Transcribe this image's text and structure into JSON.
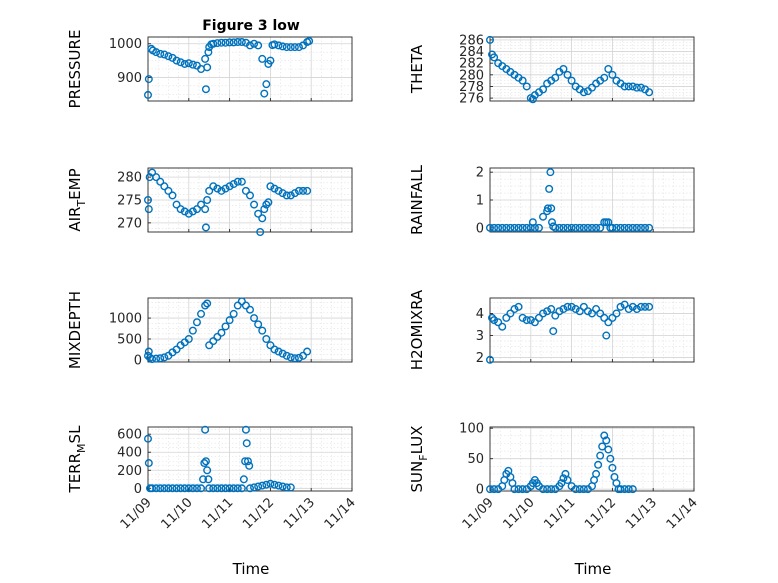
{
  "figure": {
    "title": "Figure 3 low",
    "xlabel": "Time",
    "xticks": [
      "11/09",
      "11/10",
      "11/11",
      "11/12",
      "11/13",
      "11/14"
    ],
    "marker_color": "#0072bd"
  },
  "chart_data": [
    {
      "id": "pressure",
      "type": "scatter",
      "ylabel": "PRESSURE",
      "ylabel_sub": "",
      "title": "Figure 3 low",
      "xlim": [
        0,
        5
      ],
      "ylim": [
        830,
        1020
      ],
      "yticks": [
        900,
        1000
      ],
      "x": [
        0,
        0.02,
        0.08,
        0.12,
        0.2,
        0.3,
        0.4,
        0.5,
        0.6,
        0.7,
        0.8,
        0.9,
        1.0,
        1.1,
        1.2,
        1.3,
        1.4,
        1.42,
        1.45,
        1.48,
        1.5,
        1.55,
        1.6,
        1.7,
        1.8,
        1.9,
        2.0,
        2.1,
        2.2,
        2.3,
        2.4,
        2.5,
        2.6,
        2.7,
        2.8,
        2.85,
        2.9,
        2.95,
        3.0,
        3.05,
        3.1,
        3.2,
        3.3,
        3.4,
        3.5,
        3.6,
        3.7,
        3.8,
        3.9,
        3.95
      ],
      "y": [
        848,
        895,
        985,
        980,
        975,
        970,
        968,
        963,
        958,
        950,
        945,
        940,
        942,
        938,
        935,
        925,
        955,
        865,
        930,
        975,
        990,
        998,
        1000,
        1002,
        1003,
        1003,
        1004,
        1004,
        1005,
        1005,
        1003,
        995,
        1000,
        995,
        955,
        852,
        880,
        940,
        950,
        996,
        998,
        995,
        992,
        990,
        990,
        990,
        990,
        995,
        1005,
        1008
      ]
    },
    {
      "id": "theta",
      "type": "scatter",
      "ylabel": "THETA",
      "ylabel_sub": "",
      "xlim": [
        0,
        5
      ],
      "ylim": [
        275.5,
        286.5
      ],
      "yticks": [
        276,
        278,
        280,
        282,
        284,
        286
      ],
      "x": [
        0,
        0.05,
        0.1,
        0.2,
        0.3,
        0.4,
        0.5,
        0.6,
        0.7,
        0.8,
        0.9,
        1.0,
        1.05,
        1.1,
        1.2,
        1.3,
        1.4,
        1.5,
        1.6,
        1.7,
        1.8,
        1.9,
        2.0,
        2.1,
        2.2,
        2.3,
        2.4,
        2.5,
        2.6,
        2.7,
        2.8,
        2.9,
        3.0,
        3.1,
        3.2,
        3.3,
        3.4,
        3.5,
        3.6,
        3.7,
        3.8,
        3.9
      ],
      "y": [
        286,
        283.5,
        283,
        282,
        281.5,
        281,
        280.5,
        280,
        279.5,
        279,
        278,
        276,
        275.8,
        276.5,
        277,
        277.5,
        278.5,
        279,
        279.5,
        280.5,
        281,
        280,
        279,
        278,
        277.5,
        277,
        277.2,
        277.8,
        278.5,
        279,
        279.5,
        281,
        280,
        279,
        278.5,
        278,
        278,
        278,
        277.8,
        277.8,
        277.5,
        277
      ]
    },
    {
      "id": "air_temp",
      "type": "scatter",
      "ylabel": "AIR",
      "ylabel_sub": "T",
      "ylabel_tail": "EMP",
      "xlim": [
        0,
        5
      ],
      "ylim": [
        268,
        282
      ],
      "yticks": [
        270,
        275,
        280
      ],
      "x": [
        0,
        0.02,
        0.04,
        0.1,
        0.2,
        0.3,
        0.4,
        0.5,
        0.6,
        0.7,
        0.8,
        0.9,
        1.0,
        1.1,
        1.2,
        1.3,
        1.4,
        1.42,
        1.45,
        1.5,
        1.6,
        1.7,
        1.8,
        1.9,
        2.0,
        2.1,
        2.2,
        2.3,
        2.4,
        2.5,
        2.6,
        2.7,
        2.75,
        2.8,
        2.85,
        2.9,
        2.95,
        3.0,
        3.1,
        3.2,
        3.3,
        3.4,
        3.5,
        3.6,
        3.7,
        3.8,
        3.9
      ],
      "y": [
        275,
        273,
        280,
        281,
        280,
        279,
        278,
        277,
        276,
        274,
        273,
        272.5,
        272,
        272.5,
        273,
        274,
        273,
        269,
        275,
        277,
        278,
        277.5,
        277,
        277.5,
        278,
        278.5,
        279,
        279,
        277,
        276,
        274,
        272,
        268,
        271,
        273,
        274,
        274.5,
        278,
        277.5,
        277,
        276.5,
        276,
        276,
        276.5,
        277,
        277,
        277
      ]
    },
    {
      "id": "rainfall",
      "type": "scatter",
      "ylabel": "RAINFALL",
      "ylabel_sub": "",
      "xlim": [
        0,
        5
      ],
      "ylim": [
        -0.15,
        2.15
      ],
      "yticks": [
        0,
        1,
        2
      ],
      "x": [
        0,
        0.1,
        0.2,
        0.3,
        0.4,
        0.5,
        0.6,
        0.7,
        0.8,
        0.9,
        1.0,
        1.05,
        1.1,
        1.2,
        1.3,
        1.4,
        1.42,
        1.45,
        1.48,
        1.5,
        1.52,
        1.55,
        1.6,
        1.7,
        1.8,
        1.9,
        2.0,
        2.1,
        2.2,
        2.3,
        2.4,
        2.5,
        2.6,
        2.7,
        2.8,
        2.85,
        2.9,
        2.95,
        3.0,
        3.1,
        3.2,
        3.3,
        3.4,
        3.5,
        3.6,
        3.7,
        3.8,
        3.9
      ],
      "y": [
        0,
        0,
        0,
        0,
        0,
        0,
        0,
        0,
        0,
        0,
        0,
        0.2,
        0,
        0,
        0.4,
        0.6,
        0.7,
        1.4,
        2.0,
        0.7,
        0.2,
        0.05,
        0,
        0,
        0,
        0,
        0,
        0,
        0,
        0,
        0,
        0,
        0,
        0,
        0.2,
        0.2,
        0.2,
        0,
        0,
        0,
        0,
        0,
        0,
        0,
        0,
        0,
        0,
        0
      ]
    },
    {
      "id": "mixdepth",
      "type": "scatter",
      "ylabel": "MIXDEPTH",
      "ylabel_sub": "",
      "xlim": [
        0,
        5
      ],
      "ylim": [
        -50,
        1480
      ],
      "yticks": [
        0,
        500,
        1000
      ],
      "x": [
        0,
        0.02,
        0.05,
        0.1,
        0.2,
        0.3,
        0.4,
        0.5,
        0.6,
        0.7,
        0.8,
        0.9,
        1.0,
        1.1,
        1.2,
        1.3,
        1.4,
        1.45,
        1.5,
        1.6,
        1.7,
        1.8,
        1.9,
        2.0,
        2.1,
        2.2,
        2.3,
        2.4,
        2.5,
        2.6,
        2.7,
        2.8,
        2.9,
        3.0,
        3.1,
        3.2,
        3.3,
        3.4,
        3.5,
        3.6,
        3.7,
        3.8,
        3.9
      ],
      "y": [
        100,
        200,
        50,
        20,
        30,
        40,
        60,
        100,
        180,
        250,
        350,
        420,
        500,
        700,
        900,
        1100,
        1300,
        1350,
        350,
        450,
        550,
        650,
        800,
        950,
        1100,
        1300,
        1400,
        1300,
        1200,
        1000,
        850,
        700,
        500,
        350,
        250,
        200,
        150,
        100,
        60,
        40,
        50,
        100,
        200
      ]
    },
    {
      "id": "h2omixra",
      "type": "scatter",
      "ylabel": "H2OMIXRA",
      "ylabel_sub": "",
      "xlim": [
        0,
        5
      ],
      "ylim": [
        1.8,
        4.7
      ],
      "yticks": [
        2,
        3,
        4
      ],
      "x": [
        0,
        0.05,
        0.1,
        0.2,
        0.3,
        0.4,
        0.5,
        0.6,
        0.7,
        0.8,
        0.9,
        1.0,
        1.1,
        1.2,
        1.3,
        1.4,
        1.5,
        1.55,
        1.6,
        1.7,
        1.8,
        1.9,
        2.0,
        2.1,
        2.2,
        2.3,
        2.4,
        2.5,
        2.6,
        2.7,
        2.8,
        2.85,
        2.9,
        3.0,
        3.1,
        3.2,
        3.3,
        3.4,
        3.5,
        3.6,
        3.7,
        3.8,
        3.9
      ],
      "y": [
        1.9,
        3.8,
        3.7,
        3.6,
        3.4,
        3.8,
        4.0,
        4.2,
        4.3,
        3.8,
        3.7,
        3.7,
        3.6,
        3.8,
        4.0,
        4.1,
        4.2,
        3.2,
        3.9,
        4.1,
        4.2,
        4.3,
        4.3,
        4.2,
        4.1,
        4.3,
        4.1,
        4.0,
        4.2,
        4.0,
        3.8,
        3.0,
        3.6,
        3.8,
        4.0,
        4.3,
        4.4,
        4.2,
        4.3,
        4.2,
        4.3,
        4.3,
        4.3
      ]
    },
    {
      "id": "terr_msl",
      "type": "scatter",
      "ylabel": "TERR",
      "ylabel_sub": "M",
      "ylabel_tail": "SL",
      "xlim": [
        0,
        5
      ],
      "ylim": [
        -30,
        680
      ],
      "yticks": [
        0,
        200,
        400,
        600
      ],
      "x": [
        0,
        0.02,
        0.05,
        0.1,
        0.2,
        0.3,
        0.4,
        0.5,
        0.6,
        0.7,
        0.8,
        0.9,
        1.0,
        1.1,
        1.2,
        1.3,
        1.35,
        1.38,
        1.4,
        1.42,
        1.45,
        1.48,
        1.5,
        1.6,
        1.7,
        1.8,
        1.9,
        2.0,
        2.1,
        2.2,
        2.3,
        2.35,
        2.38,
        2.4,
        2.42,
        2.45,
        2.48,
        2.5,
        2.6,
        2.7,
        2.8,
        2.9,
        3.0,
        3.1,
        3.2,
        3.3,
        3.4,
        3.5
      ],
      "y": [
        550,
        280,
        0,
        0,
        0,
        0,
        0,
        0,
        0,
        0,
        0,
        0,
        0,
        0,
        0,
        0,
        100,
        280,
        650,
        300,
        200,
        100,
        0,
        0,
        0,
        0,
        0,
        0,
        0,
        0,
        0,
        100,
        300,
        650,
        500,
        300,
        250,
        0,
        10,
        20,
        30,
        40,
        50,
        40,
        30,
        20,
        10,
        10
      ]
    },
    {
      "id": "sun_flux",
      "type": "scatter",
      "ylabel": "SUN",
      "ylabel_sub": "F",
      "ylabel_tail": "LUX",
      "xlim": [
        0,
        5
      ],
      "ylim": [
        -3,
        102
      ],
      "yticks": [
        0,
        50,
        100
      ],
      "x": [
        0,
        0.1,
        0.2,
        0.3,
        0.35,
        0.4,
        0.45,
        0.5,
        0.55,
        0.6,
        0.7,
        0.8,
        0.9,
        1.0,
        1.05,
        1.1,
        1.15,
        1.2,
        1.3,
        1.4,
        1.5,
        1.6,
        1.7,
        1.75,
        1.8,
        1.85,
        1.9,
        2.0,
        2.1,
        2.2,
        2.3,
        2.4,
        2.5,
        2.55,
        2.6,
        2.65,
        2.7,
        2.75,
        2.8,
        2.85,
        2.9,
        2.95,
        3.0,
        3.05,
        3.1,
        3.15,
        3.2,
        3.3,
        3.4,
        3.5
      ],
      "y": [
        0,
        0,
        0,
        5,
        15,
        25,
        30,
        20,
        10,
        0,
        0,
        0,
        0,
        5,
        10,
        15,
        10,
        5,
        0,
        0,
        0,
        0,
        5,
        10,
        18,
        25,
        15,
        5,
        0,
        0,
        0,
        0,
        5,
        15,
        25,
        40,
        55,
        70,
        88,
        80,
        65,
        50,
        35,
        20,
        10,
        0,
        0,
        0,
        0,
        0
      ]
    }
  ]
}
